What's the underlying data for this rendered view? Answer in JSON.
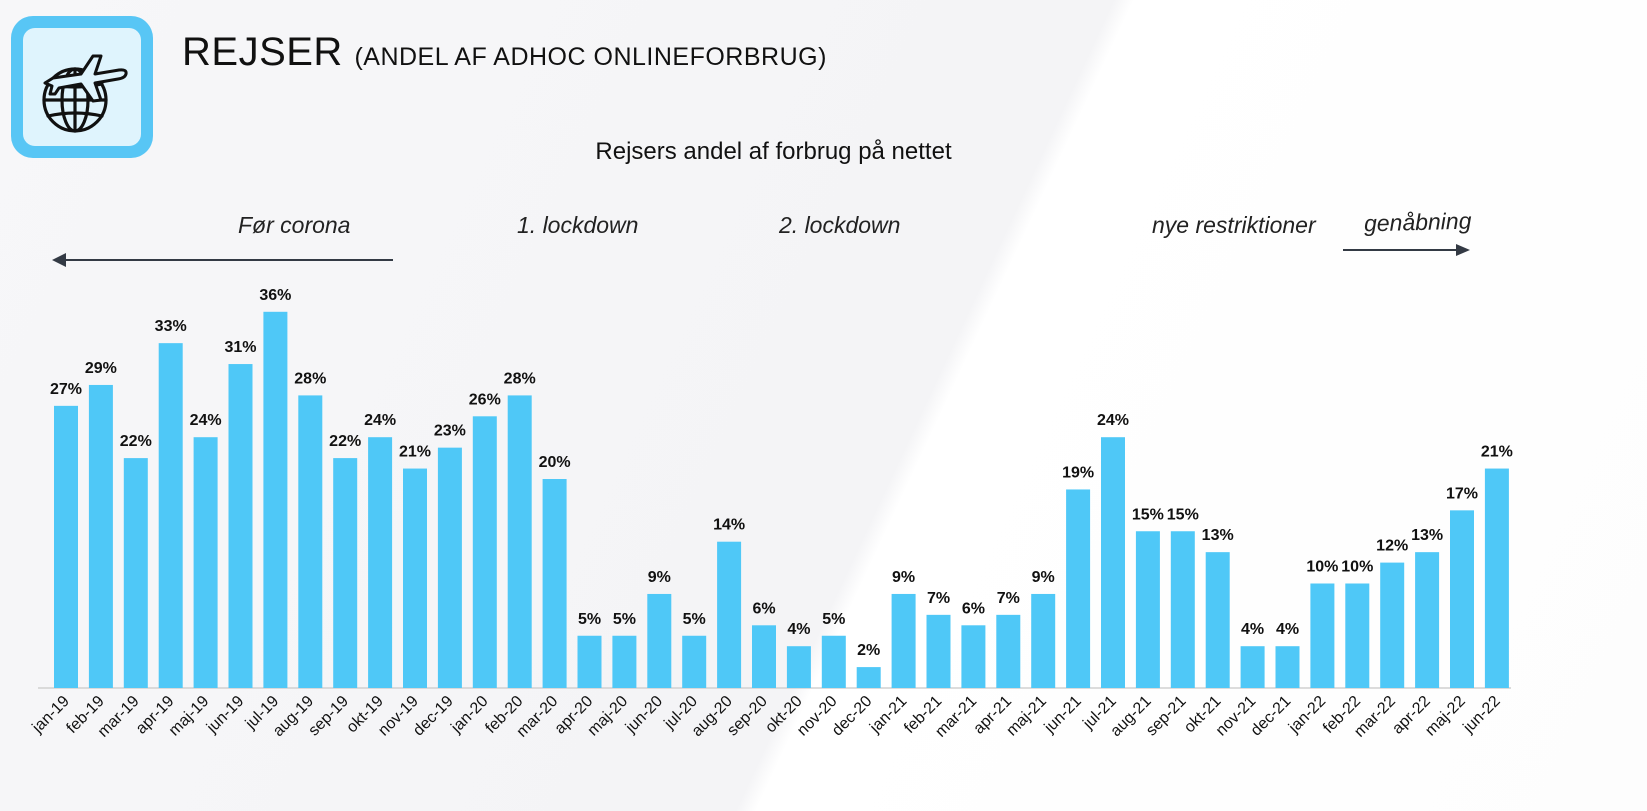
{
  "header": {
    "title": "REJSER",
    "subtitle": "(ANDEL AF ADHOC ONLINEFORBRUG)",
    "icon": "globe-airplane-icon"
  },
  "annotations": {
    "before_corona": "Før corona",
    "lockdown1": "1. lockdown",
    "lockdown2": "2. lockdown",
    "new_restrictions": "nye restriktioner",
    "reopening": "genåbning"
  },
  "colors": {
    "bar": "#4fc8f7",
    "accent": "#58c6f5",
    "axis": "#d0d0d0",
    "arrow": "#333a44"
  },
  "chart_data": {
    "type": "bar",
    "title": "Rejsers andel af forbrug på nettet",
    "xlabel": "",
    "ylabel": "",
    "ylim": [
      0,
      40
    ],
    "categories": [
      "jan-19",
      "feb-19",
      "mar-19",
      "apr-19",
      "maj-19",
      "jun-19",
      "jul-19",
      "aug-19",
      "sep-19",
      "okt-19",
      "nov-19",
      "dec-19",
      "jan-20",
      "feb-20",
      "mar-20",
      "apr-20",
      "maj-20",
      "jun-20",
      "jul-20",
      "aug-20",
      "sep-20",
      "okt-20",
      "nov-20",
      "dec-20",
      "jan-21",
      "feb-21",
      "mar-21",
      "apr-21",
      "maj-21",
      "jun-21",
      "jul-21",
      "aug-21",
      "sep-21",
      "okt-21",
      "nov-21",
      "dec-21",
      "jan-22",
      "feb-22",
      "mar-22",
      "apr-22",
      "maj-22",
      "jun-22"
    ],
    "values": [
      27,
      29,
      22,
      33,
      24,
      31,
      36,
      28,
      22,
      24,
      21,
      23,
      26,
      28,
      20,
      5,
      5,
      9,
      5,
      14,
      6,
      4,
      5,
      2,
      9,
      7,
      6,
      7,
      9,
      19,
      24,
      15,
      15,
      13,
      4,
      4,
      10,
      10,
      12,
      13,
      17,
      21
    ],
    "value_labels": [
      "27%",
      "29%",
      "22%",
      "33%",
      "24%",
      "31%",
      "36%",
      "28%",
      "22%",
      "24%",
      "21%",
      "23%",
      "26%",
      "28%",
      "20%",
      "5%",
      "5%",
      "9%",
      "5%",
      "14%",
      "6%",
      "4%",
      "5%",
      "2%",
      "9%",
      "7%",
      "6%",
      "7%",
      "9%",
      "19%",
      "24%",
      "15%",
      "15%",
      "13%",
      "4%",
      "4%",
      "10%",
      "10%",
      "12%",
      "13%",
      "17%",
      "21%"
    ],
    "grid": false,
    "legend": "none"
  }
}
